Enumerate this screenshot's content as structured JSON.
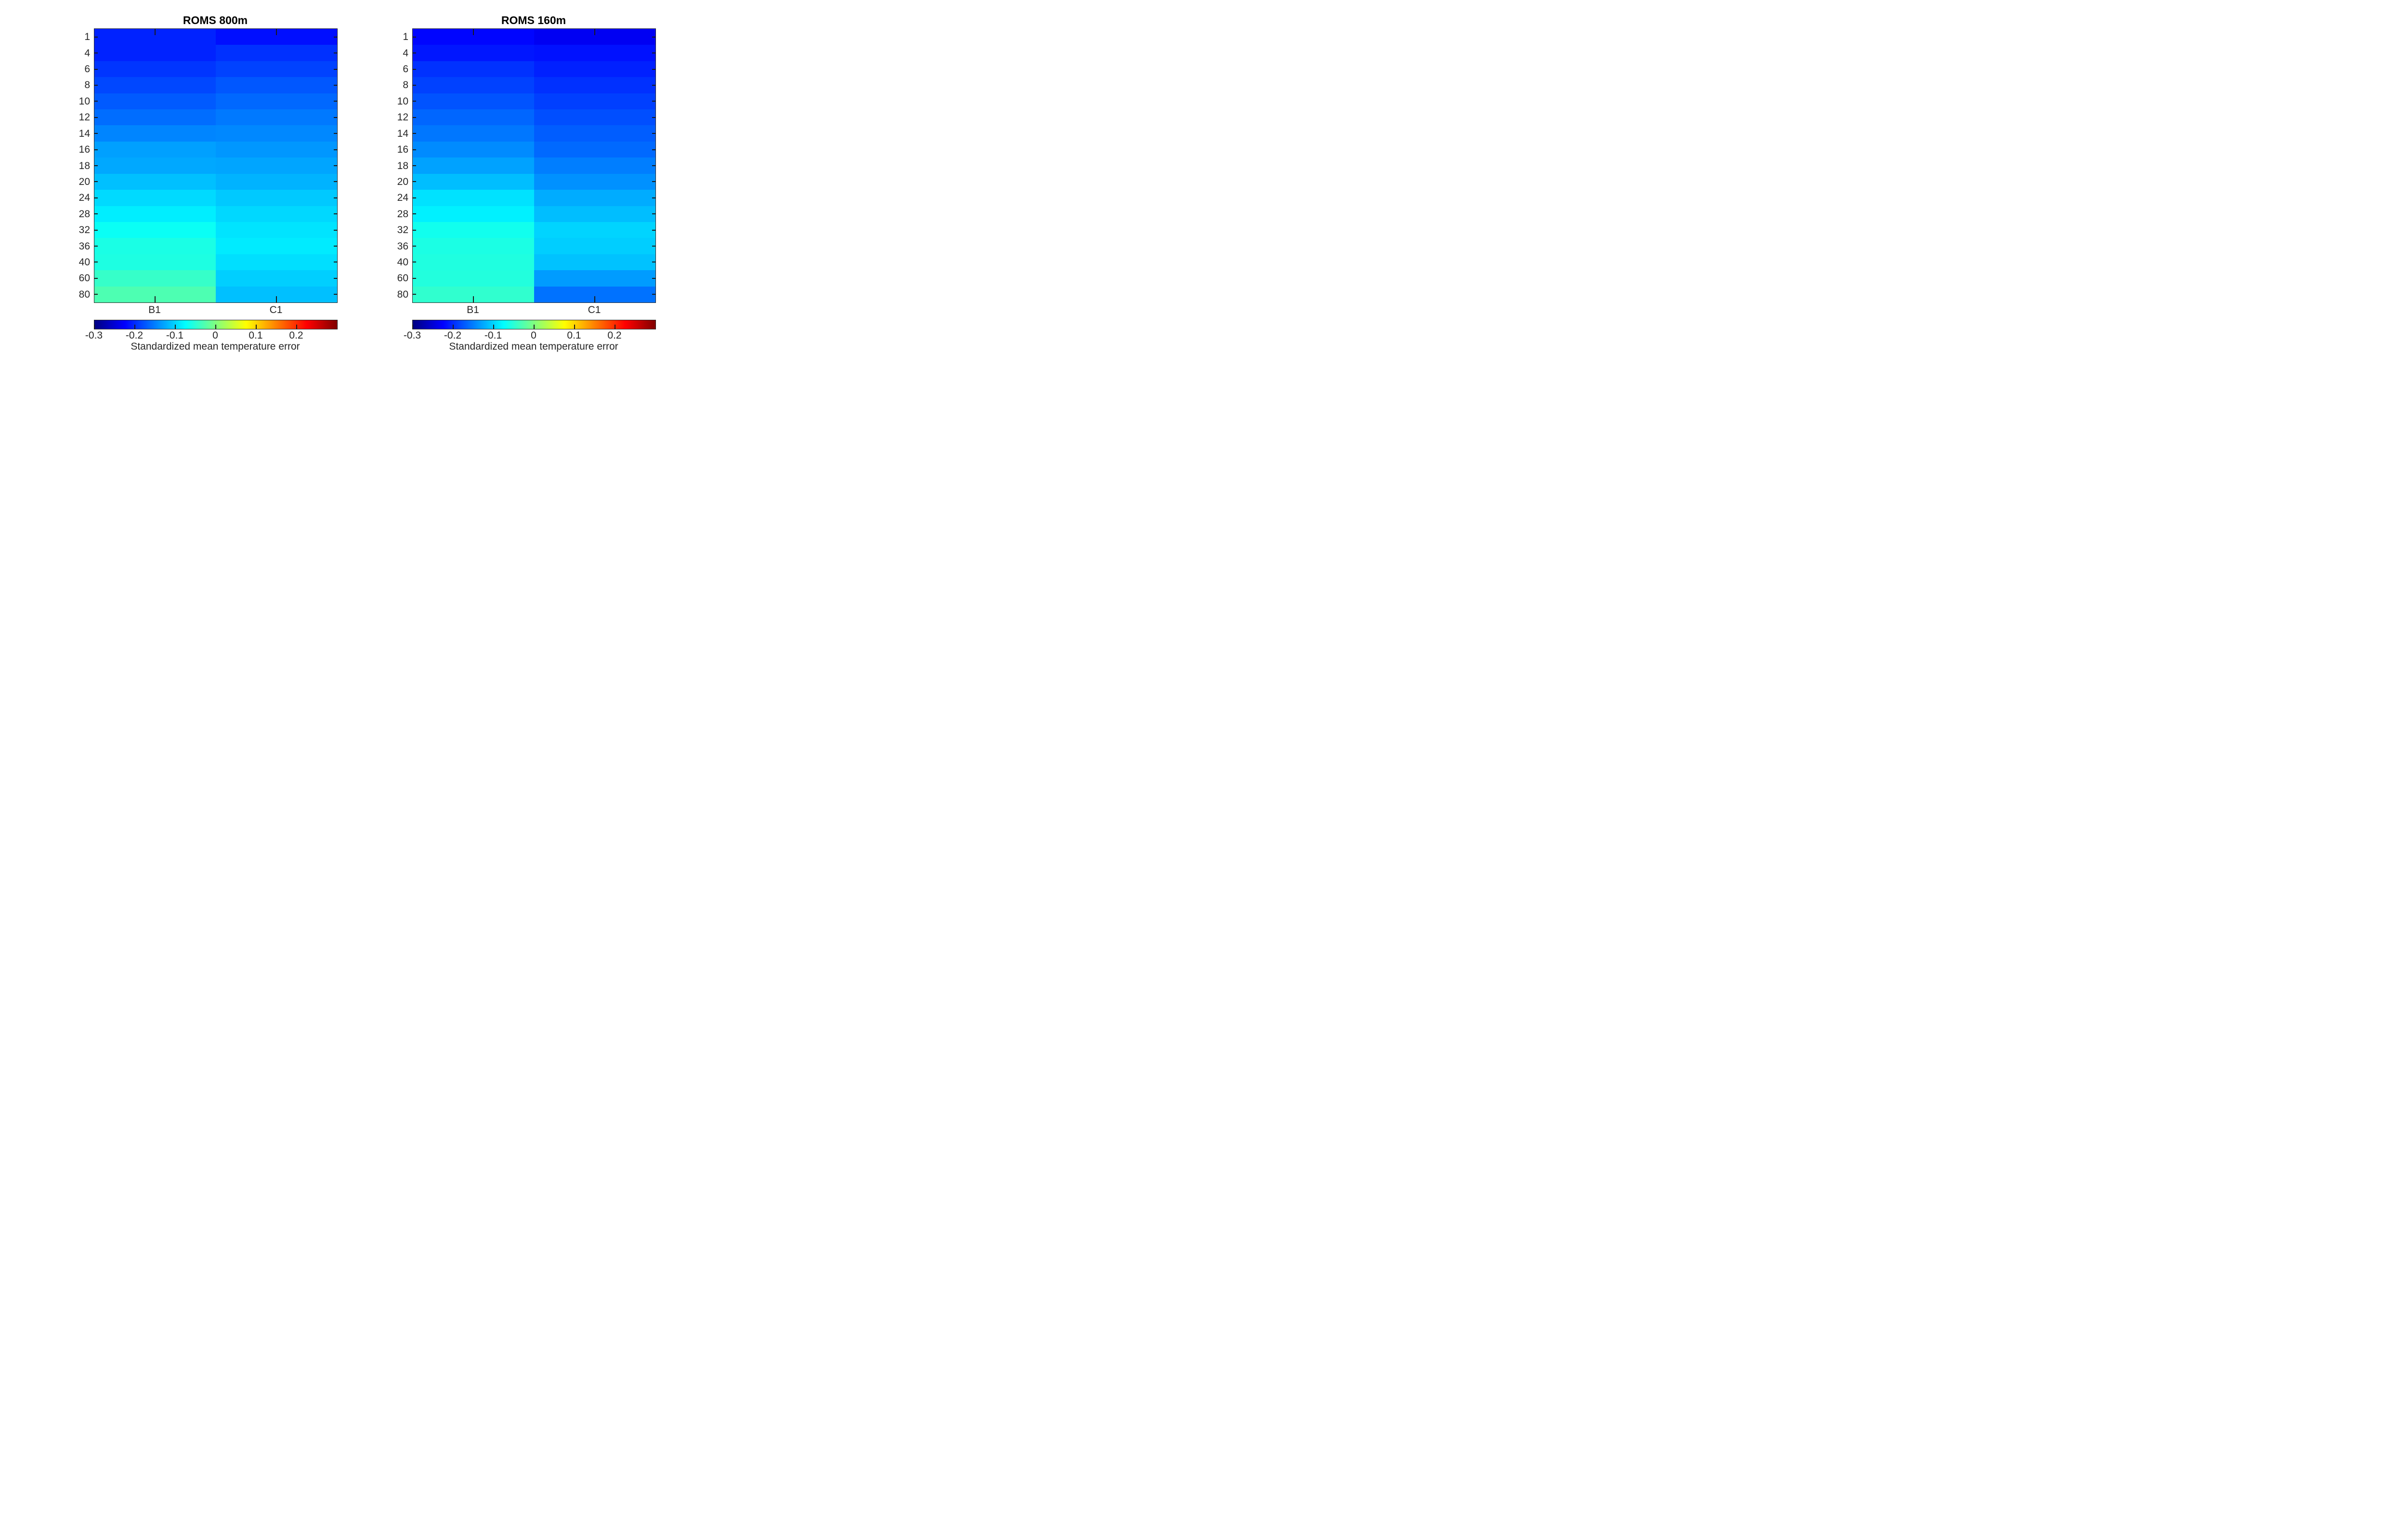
{
  "figure": {
    "background": "#ffffff",
    "axis_color": "#262626",
    "title_color": "#000000"
  },
  "colormap": {
    "name": "jet",
    "vmin": -0.3,
    "vmax": 0.3,
    "end_colors": {
      "low": "#000080",
      "high": "#800000"
    }
  },
  "chart_data": [
    {
      "type": "heatmap",
      "title": "ROMS 800m",
      "x_categories": [
        "B1",
        "C1"
      ],
      "y_categories": [
        "1",
        "4",
        "6",
        "8",
        "10",
        "12",
        "14",
        "16",
        "18",
        "20",
        "24",
        "28",
        "32",
        "36",
        "40",
        "60",
        "80"
      ],
      "series": [
        {
          "name": "B1",
          "values": [
            -0.205,
            -0.205,
            -0.194,
            -0.183,
            -0.172,
            -0.161,
            -0.147,
            -0.131,
            -0.126,
            -0.112,
            -0.097,
            -0.085,
            -0.069,
            -0.06,
            -0.058,
            -0.043,
            -0.03
          ]
        },
        {
          "name": "C1",
          "values": [
            -0.217,
            -0.197,
            -0.186,
            -0.174,
            -0.164,
            -0.154,
            -0.145,
            -0.136,
            -0.128,
            -0.12,
            -0.107,
            -0.098,
            -0.091,
            -0.087,
            -0.094,
            -0.103,
            -0.112
          ]
        }
      ],
      "colormap": "jet",
      "vmin": -0.3,
      "vmax": 0.3,
      "grid": false,
      "colorbar": {
        "orientation": "horizontal",
        "ticks": [
          -0.3,
          -0.2,
          -0.1,
          0,
          0.1,
          0.2
        ],
        "tick_labels": [
          "-0.3",
          "-0.2",
          "-0.1",
          "0",
          "0.1",
          "0.2"
        ],
        "label": "Standardized mean temperature error"
      }
    },
    {
      "type": "heatmap",
      "title": "ROMS 160m",
      "x_categories": [
        "B1",
        "C1"
      ],
      "y_categories": [
        "1",
        "4",
        "6",
        "8",
        "10",
        "12",
        "14",
        "16",
        "18",
        "20",
        "24",
        "28",
        "32",
        "36",
        "40",
        "60",
        "80"
      ],
      "series": [
        {
          "name": "B1",
          "values": [
            -0.222,
            -0.212,
            -0.196,
            -0.187,
            -0.176,
            -0.165,
            -0.155,
            -0.143,
            -0.13,
            -0.113,
            -0.092,
            -0.083,
            -0.065,
            -0.059,
            -0.057,
            -0.055,
            -0.047
          ]
        },
        {
          "name": "C1",
          "values": [
            -0.232,
            -0.215,
            -0.206,
            -0.197,
            -0.188,
            -0.179,
            -0.17,
            -0.163,
            -0.151,
            -0.14,
            -0.124,
            -0.113,
            -0.1,
            -0.104,
            -0.111,
            -0.133,
            -0.158
          ]
        }
      ],
      "colormap": "jet",
      "vmin": -0.3,
      "vmax": 0.3,
      "grid": false,
      "colorbar": {
        "orientation": "horizontal",
        "ticks": [
          -0.3,
          -0.2,
          -0.1,
          0,
          0.1,
          0.2
        ],
        "tick_labels": [
          "-0.3",
          "-0.2",
          "-0.1",
          "0",
          "0.1",
          "0.2"
        ],
        "label": "Standardized mean temperature error"
      }
    }
  ]
}
